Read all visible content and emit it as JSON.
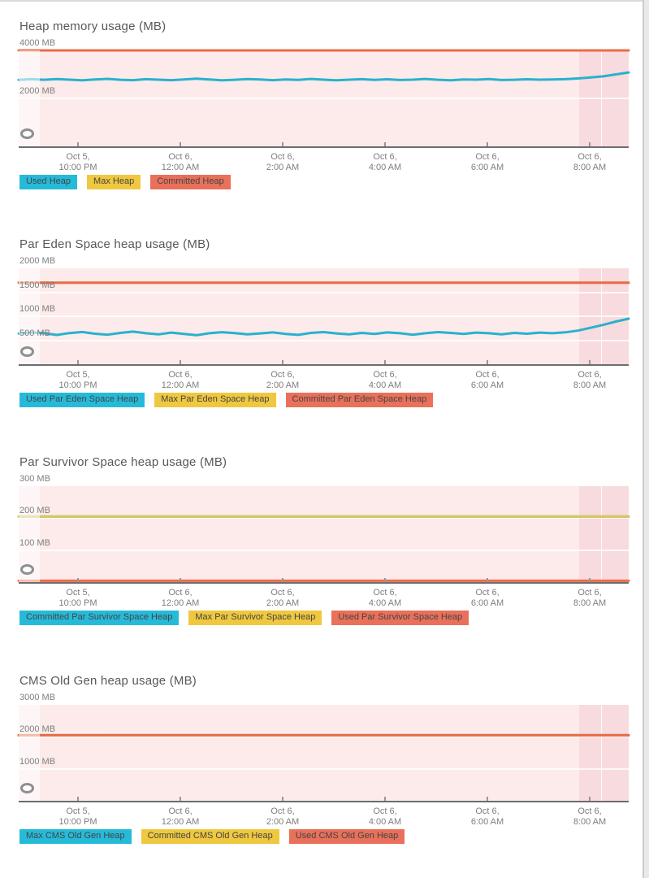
{
  "page": {
    "background": "#ffffff",
    "top_border": "#d9d9d9",
    "right_track": "#e9e9e9",
    "right_track_line": "#cccccc"
  },
  "colors": {
    "chip": {
      "cyan": "#26bad9",
      "yellow": "#efc83f",
      "red": "#e9705a"
    },
    "line": {
      "cyan": "#2ab1ce",
      "yellow": "#dbc658",
      "red": "#e96c4a"
    },
    "plot_bg": "#fcebea",
    "plot_bg_recent_band": "#f8dbde",
    "axis_line": "#6d6d6d",
    "tick_mark": "#979797",
    "title_text": "#57585c",
    "axis_label_text": "#7e7e7e",
    "legend_text": "#454545"
  },
  "chart_data": [
    {
      "type": "line",
      "title": "Heap memory usage (MB)",
      "unit": "MB",
      "ylim": [
        0,
        4000
      ],
      "grid": true,
      "legend_position": "bottom",
      "y_ticks": [
        {
          "value": 4000,
          "label": "4000 MB"
        },
        {
          "value": 2000,
          "label": "2000 MB"
        }
      ],
      "x_tick_labels": [
        [
          "Oct 5,",
          "10:00 PM"
        ],
        [
          "Oct 6,",
          "12:00 AM"
        ],
        [
          "Oct 6,",
          "2:00 AM"
        ],
        [
          "Oct 6,",
          "4:00 AM"
        ],
        [
          "Oct 6,",
          "6:00 AM"
        ],
        [
          "Oct 6,",
          "8:00 AM"
        ]
      ],
      "series": [
        {
          "name": "Used Heap",
          "color_key": "cyan",
          "values": [
            2770,
            2800,
            2775,
            2805,
            2780,
            2755,
            2790,
            2815,
            2775,
            2760,
            2800,
            2780,
            2760,
            2790,
            2820,
            2785,
            2755,
            2775,
            2805,
            2785,
            2760,
            2790,
            2770,
            2810,
            2780,
            2755,
            2780,
            2800,
            2770,
            2795,
            2765,
            2780,
            2810,
            2775,
            2755,
            2790,
            2780,
            2805,
            2765,
            2775,
            2795,
            2780,
            2790,
            2800,
            2830,
            2870,
            2920,
            3000,
            3080
          ]
        },
        {
          "name": "Max Heap",
          "color_key": "yellow",
          "value": 4000
        },
        {
          "name": "Committed Heap",
          "color_key": "red",
          "value": 4000
        }
      ]
    },
    {
      "type": "line",
      "title": "Par Eden Space heap usage (MB)",
      "unit": "MB",
      "ylim": [
        0,
        2000
      ],
      "grid": true,
      "legend_position": "bottom",
      "y_ticks": [
        {
          "value": 2000,
          "label": "2000 MB"
        },
        {
          "value": 1500,
          "label": "1500 MB"
        },
        {
          "value": 1000,
          "label": "1000 MB"
        },
        {
          "value": 500,
          "label": "500 MB"
        }
      ],
      "x_tick_labels": [
        [
          "Oct 5,",
          "10:00 PM"
        ],
        [
          "Oct 6,",
          "12:00 AM"
        ],
        [
          "Oct 6,",
          "2:00 AM"
        ],
        [
          "Oct 6,",
          "4:00 AM"
        ],
        [
          "Oct 6,",
          "6:00 AM"
        ],
        [
          "Oct 6,",
          "8:00 AM"
        ]
      ],
      "series": [
        {
          "name": "Used Par Eden Space Heap",
          "color_key": "cyan",
          "values": [
            640,
            665,
            645,
            610,
            650,
            672,
            635,
            615,
            652,
            680,
            645,
            622,
            660,
            632,
            605,
            645,
            668,
            650,
            622,
            642,
            662,
            632,
            612,
            652,
            670,
            642,
            622,
            652,
            632,
            662,
            645,
            615,
            645,
            670,
            652,
            632,
            660,
            645,
            622,
            652,
            635,
            660,
            645,
            665,
            700,
            760,
            820,
            890,
            950
          ]
        },
        {
          "name": "Max Par Eden Space Heap",
          "color_key": "yellow",
          "value": 1700
        },
        {
          "name": "Committed Par Eden Space Heap",
          "color_key": "red",
          "value": 1700
        }
      ]
    },
    {
      "type": "line",
      "title": "Par Survivor Space heap usage (MB)",
      "unit": "MB",
      "ylim": [
        0,
        300
      ],
      "grid": true,
      "legend_position": "bottom",
      "y_ticks": [
        {
          "value": 300,
          "label": "300 MB"
        },
        {
          "value": 200,
          "label": "200 MB"
        },
        {
          "value": 100,
          "label": "100 MB"
        }
      ],
      "x_tick_labels": [
        [
          "Oct 5,",
          "10:00 PM"
        ],
        [
          "Oct 6,",
          "12:00 AM"
        ],
        [
          "Oct 6,",
          "2:00 AM"
        ],
        [
          "Oct 6,",
          "4:00 AM"
        ],
        [
          "Oct 6,",
          "6:00 AM"
        ],
        [
          "Oct 6,",
          "8:00 AM"
        ]
      ],
      "series": [
        {
          "name": "Committed Par Survivor Space Heap",
          "color_key": "cyan",
          "value": 205
        },
        {
          "name": "Max Par Survivor Space Heap",
          "color_key": "yellow",
          "value": 205
        },
        {
          "name": "Used Par Survivor Space Heap",
          "color_key": "red",
          "value": 4
        }
      ]
    },
    {
      "type": "line",
      "title": "CMS Old Gen heap usage (MB)",
      "unit": "MB",
      "ylim": [
        0,
        3000
      ],
      "grid": true,
      "legend_position": "bottom",
      "y_ticks": [
        {
          "value": 3000,
          "label": "3000 MB"
        },
        {
          "value": 2000,
          "label": "2000 MB"
        },
        {
          "value": 1000,
          "label": "1000 MB"
        }
      ],
      "x_tick_labels": [
        [
          "Oct 5,",
          "10:00 PM"
        ],
        [
          "Oct 6,",
          "12:00 AM"
        ],
        [
          "Oct 6,",
          "2:00 AM"
        ],
        [
          "Oct 6,",
          "4:00 AM"
        ],
        [
          "Oct 6,",
          "6:00 AM"
        ],
        [
          "Oct 6,",
          "8:00 AM"
        ]
      ],
      "series": [
        {
          "name": "Max CMS Old Gen Heap",
          "color_key": "cyan",
          "value": 2048
        },
        {
          "name": "Committed CMS Old Gen Heap",
          "color_key": "yellow",
          "value": 2048
        },
        {
          "name": "Used CMS Old Gen Heap",
          "color_key": "red",
          "value": 2048
        }
      ]
    }
  ]
}
